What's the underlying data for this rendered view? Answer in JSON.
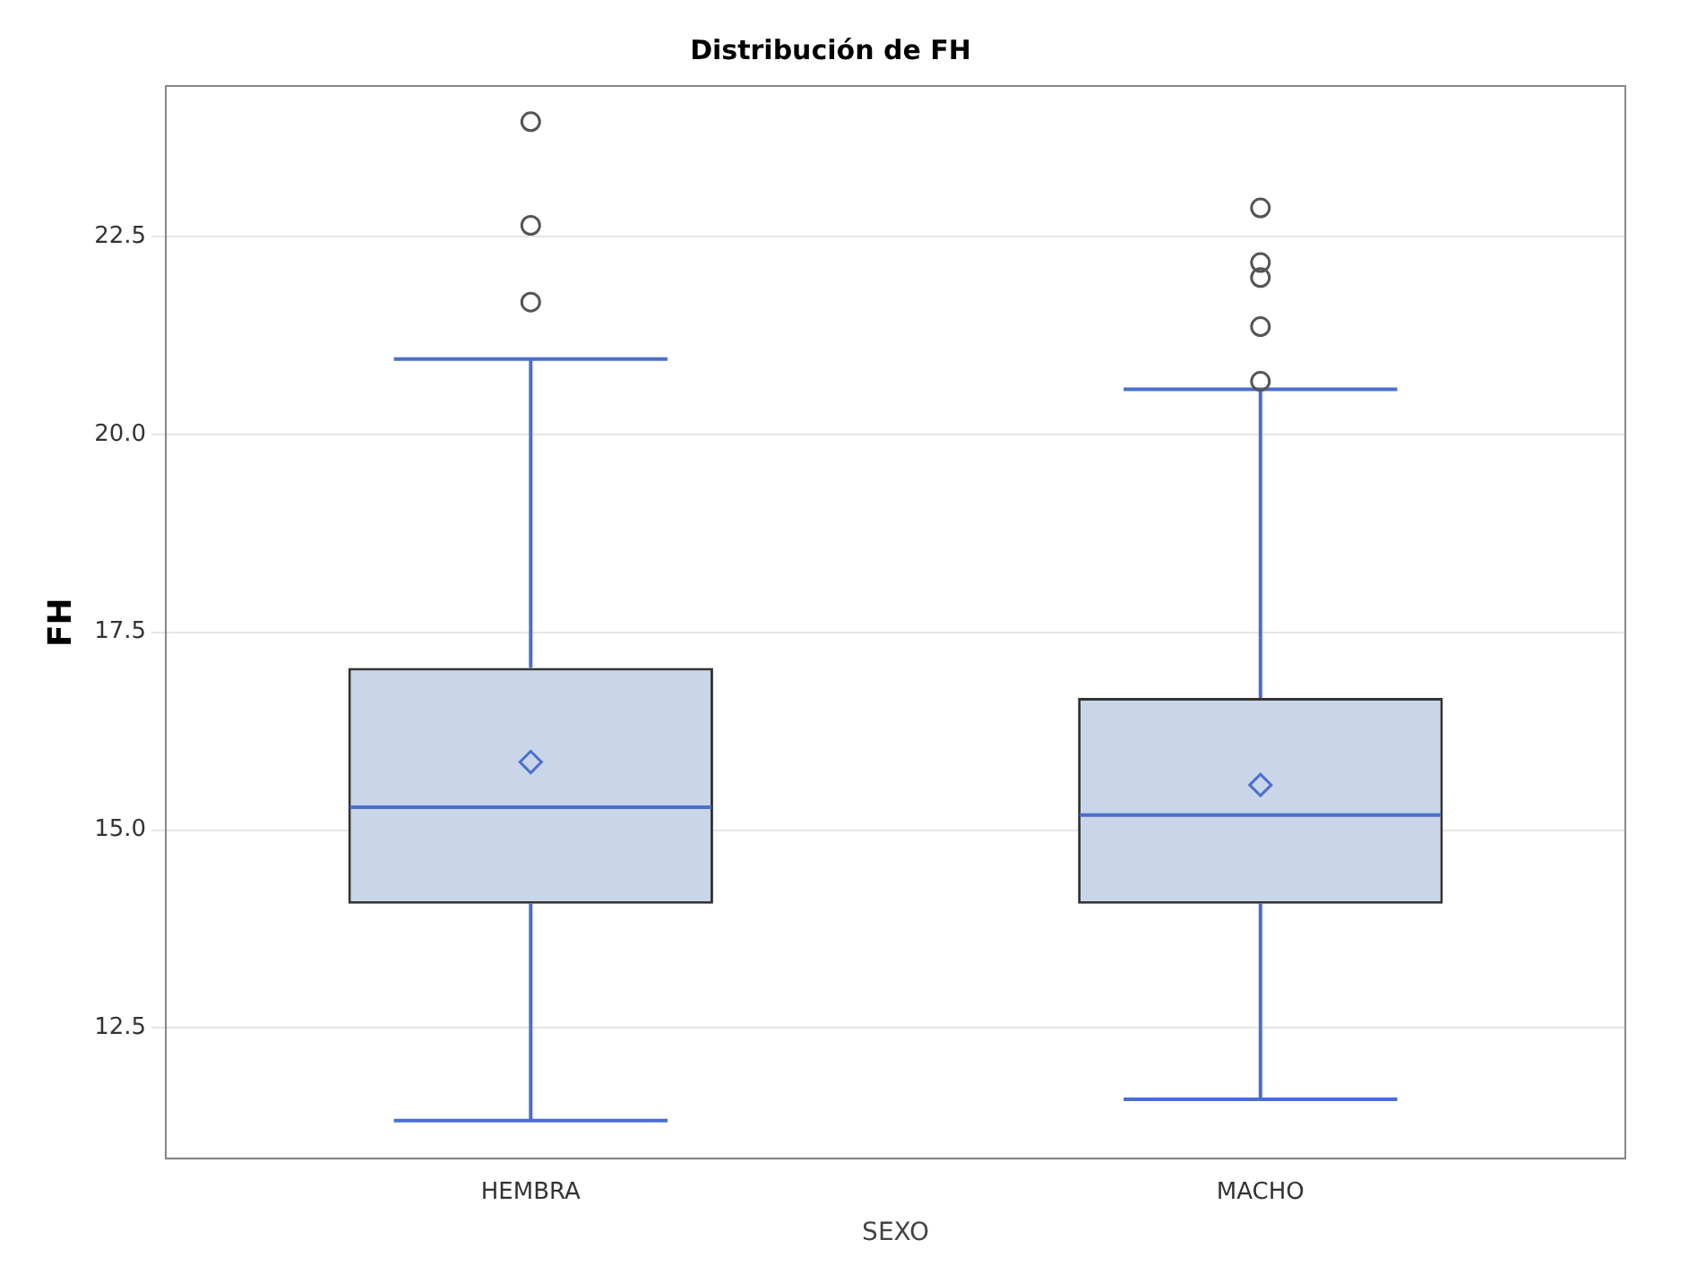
{
  "chart_data": {
    "type": "box",
    "title": "Distribución de FH",
    "xlabel": "SEXO",
    "ylabel": "FH",
    "categories": [
      "HEMBRA",
      "MACHO"
    ],
    "series": [
      {
        "color": "#333333",
        "boxes": [
          {
            "low": 11.33,
            "q1": 14.07,
            "median": 15.29,
            "q3": 17.05,
            "high": 20.95,
            "mean": 15.86,
            "outliers": [
              21.67,
              22.64,
              23.95
            ]
          },
          {
            "low": 11.6,
            "q1": 14.07,
            "median": 15.19,
            "q3": 16.67,
            "high": 20.57,
            "mean": 15.57,
            "outliers": [
              20.67,
              21.36,
              21.98,
              22.17,
              22.86
            ]
          }
        ]
      }
    ],
    "ylim": [
      10.85,
      24.4
    ],
    "yticks": [
      {
        "value": 12.5,
        "label": "12.5"
      },
      {
        "value": 15,
        "label": "15.0"
      },
      {
        "value": 17.5,
        "label": "17.5"
      },
      {
        "value": 20,
        "label": "20.0"
      },
      {
        "value": 22.5,
        "label": "22.5"
      }
    ],
    "grid": "y",
    "legend": false
  }
}
